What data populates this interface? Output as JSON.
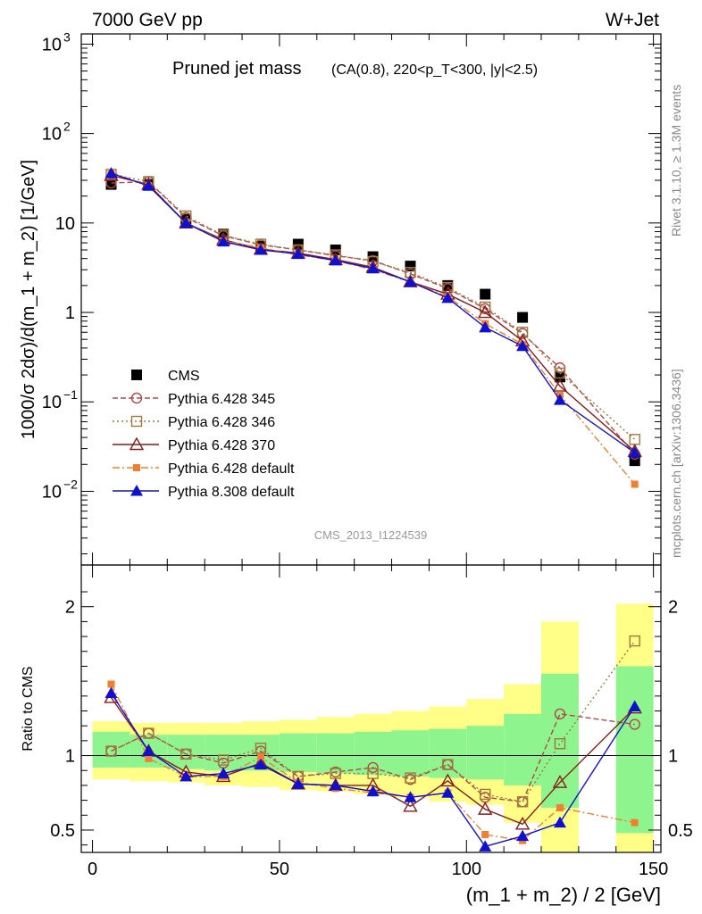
{
  "header": {
    "left": "7000 GeV pp",
    "right": "W+Jet"
  },
  "side_labels": {
    "rivet": "Rivet 3.1.10, ≥ 1.3M events",
    "mcplots": "mcplots.cern.ch [arXiv:1306.3436]"
  },
  "chart_data": {
    "type": "scatter",
    "title_main": "Pruned jet mass",
    "title_sub": "(CA(0.8), 220<p_T<300, |y|<2.5)",
    "analysis_id": "CMS_2013_I1224539",
    "xlabel": "(m_1 + m_2) / 2 [GeV]",
    "ylabel_main": "1000/σ 2dσ)/d(m_1 + m_2) [1/GeV]",
    "ylabel_ratio": "Ratio to CMS",
    "xlim": [
      -3,
      152
    ],
    "ylim_main": [
      0.0015,
      1300
    ],
    "ylog_main": true,
    "ylim_ratio": [
      0.35,
      2.28
    ],
    "x_ticks": [
      0,
      50,
      100,
      150
    ],
    "ratio_ticks": [
      0.5,
      1,
      2
    ],
    "bins": [
      5,
      15,
      25,
      35,
      45,
      55,
      65,
      75,
      85,
      95,
      105,
      115,
      125,
      145
    ],
    "bin_edges": [
      [
        0,
        10
      ],
      [
        10,
        20
      ],
      [
        20,
        30
      ],
      [
        30,
        40
      ],
      [
        40,
        50
      ],
      [
        50,
        60
      ],
      [
        60,
        70
      ],
      [
        70,
        80
      ],
      [
        80,
        90
      ],
      [
        90,
        100
      ],
      [
        100,
        110
      ],
      [
        110,
        120
      ],
      [
        120,
        130
      ],
      [
        140,
        150
      ]
    ],
    "band_inner": [
      [
        0.92,
        1.16
      ],
      [
        0.92,
        1.14
      ],
      [
        0.91,
        1.14
      ],
      [
        0.9,
        1.14
      ],
      [
        0.9,
        1.14
      ],
      [
        0.89,
        1.15
      ],
      [
        0.88,
        1.15
      ],
      [
        0.87,
        1.16
      ],
      [
        0.86,
        1.17
      ],
      [
        0.85,
        1.18
      ],
      [
        0.84,
        1.2
      ],
      [
        0.8,
        1.28
      ],
      [
        0.65,
        1.55
      ],
      [
        0.48,
        1.6
      ]
    ],
    "band_outer": [
      [
        0.84,
        1.23
      ],
      [
        0.83,
        1.22
      ],
      [
        0.82,
        1.22
      ],
      [
        0.8,
        1.22
      ],
      [
        0.79,
        1.23
      ],
      [
        0.77,
        1.24
      ],
      [
        0.76,
        1.26
      ],
      [
        0.74,
        1.28
      ],
      [
        0.72,
        1.3
      ],
      [
        0.69,
        1.33
      ],
      [
        0.67,
        1.38
      ],
      [
        0.55,
        1.48
      ],
      [
        0.35,
        1.9
      ],
      [
        0.35,
        2.02
      ]
    ],
    "legend_position": "lower-left",
    "series": [
      {
        "name": "CMS",
        "color": "#000000",
        "marker": "filled-square",
        "line": "none",
        "values": [
          27,
          27,
          11,
          7.5,
          5.5,
          5.8,
          5.0,
          4.2,
          3.3,
          2.0,
          1.6,
          0.88,
          0.19,
          0.022
        ]
      },
      {
        "name": "Pythia 6.428 345",
        "color": "#b04a4a",
        "marker": "open-circle",
        "line": "dashed",
        "values": [
          28,
          29,
          11.5,
          7.2,
          5.7,
          5.0,
          4.3,
          3.8,
          2.7,
          1.85,
          1.1,
          0.58,
          0.24,
          0.026
        ],
        "ratio": [
          1.03,
          1.15,
          1.01,
          0.95,
          1.03,
          0.86,
          0.89,
          0.92,
          0.84,
          0.94,
          0.72,
          0.69,
          1.28,
          1.21
        ]
      },
      {
        "name": "Pythia 6.428 346",
        "color": "#a0783c",
        "marker": "open-square",
        "line": "dotted",
        "values": [
          35,
          29,
          12,
          7.3,
          5.8,
          5.0,
          4.4,
          3.7,
          2.8,
          1.9,
          1.15,
          0.6,
          0.21,
          0.038
        ],
        "ratio": [
          1.03,
          1.15,
          1.01,
          0.97,
          1.05,
          0.86,
          0.88,
          0.88,
          0.85,
          0.94,
          0.74,
          0.69,
          1.08,
          1.77
        ]
      },
      {
        "name": "Pythia 6.428 370",
        "color": "#8b1a1a",
        "marker": "open-triangle",
        "line": "solid",
        "values": [
          34,
          27,
          10,
          6.5,
          5.1,
          4.6,
          3.9,
          3.2,
          2.2,
          1.6,
          1.0,
          0.48,
          0.15,
          0.028
        ],
        "ratio": [
          1.39,
          1.03,
          0.89,
          0.86,
          0.95,
          0.81,
          0.8,
          0.8,
          0.66,
          0.83,
          0.64,
          0.54,
          0.82,
          1.32
        ]
      },
      {
        "name": "Pythia 6.428 default",
        "color": "#f08030",
        "marker": "filled-square-small",
        "line": "dashdot",
        "values": [
          37,
          26,
          10,
          6.3,
          5.3,
          4.4,
          3.8,
          3.0,
          2.2,
          1.5,
          0.75,
          0.44,
          0.12,
          0.012
        ],
        "ratio": [
          1.48,
          0.98,
          0.86,
          0.86,
          0.99,
          0.82,
          0.78,
          0.75,
          0.72,
          0.75,
          0.47,
          0.43,
          0.65,
          0.55
        ]
      },
      {
        "name": "Pythia 8.308 default",
        "color": "#1010d0",
        "marker": "filled-triangle",
        "line": "solid",
        "values": [
          36,
          26,
          10,
          6.2,
          5.0,
          4.5,
          3.8,
          3.1,
          2.2,
          1.45,
          0.68,
          0.42,
          0.105,
          0.027
        ],
        "ratio": [
          1.42,
          1.03,
          0.86,
          0.88,
          0.94,
          0.81,
          0.8,
          0.76,
          0.72,
          0.75,
          0.39,
          0.46,
          0.55,
          1.33
        ]
      }
    ]
  }
}
